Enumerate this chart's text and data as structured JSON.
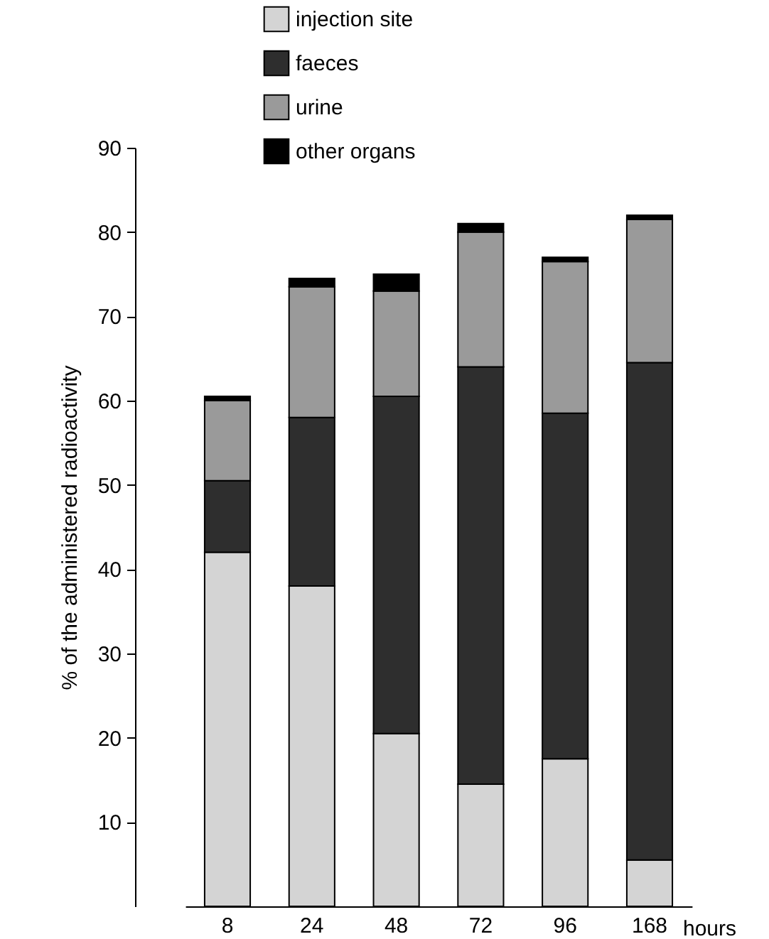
{
  "chart_data": {
    "type": "bar",
    "stacked": true,
    "xlabel": "hours",
    "ylabel": "% of the administered radioactivity",
    "categories": [
      "8",
      "24",
      "48",
      "72",
      "96",
      "168"
    ],
    "series": [
      {
        "name": "injection site",
        "color": "#d4d4d4",
        "values": [
          42,
          38,
          20.5,
          14.5,
          17.5,
          5.5
        ]
      },
      {
        "name": "faeces",
        "color": "#2e2e2e",
        "values": [
          8.5,
          20,
          40,
          49.5,
          41,
          59
        ]
      },
      {
        "name": "urine",
        "color": "#9a9a9a",
        "values": [
          9.5,
          15.5,
          12.5,
          16,
          18,
          17
        ]
      },
      {
        "name": "other organs",
        "color": "#000000",
        "values": [
          0.5,
          1,
          2,
          1,
          0.5,
          0.5
        ]
      }
    ],
    "ylim": [
      0,
      90
    ],
    "yticks": [
      10,
      20,
      30,
      40,
      50,
      60,
      70,
      80,
      90
    ],
    "grid": false,
    "legend": "top"
  }
}
